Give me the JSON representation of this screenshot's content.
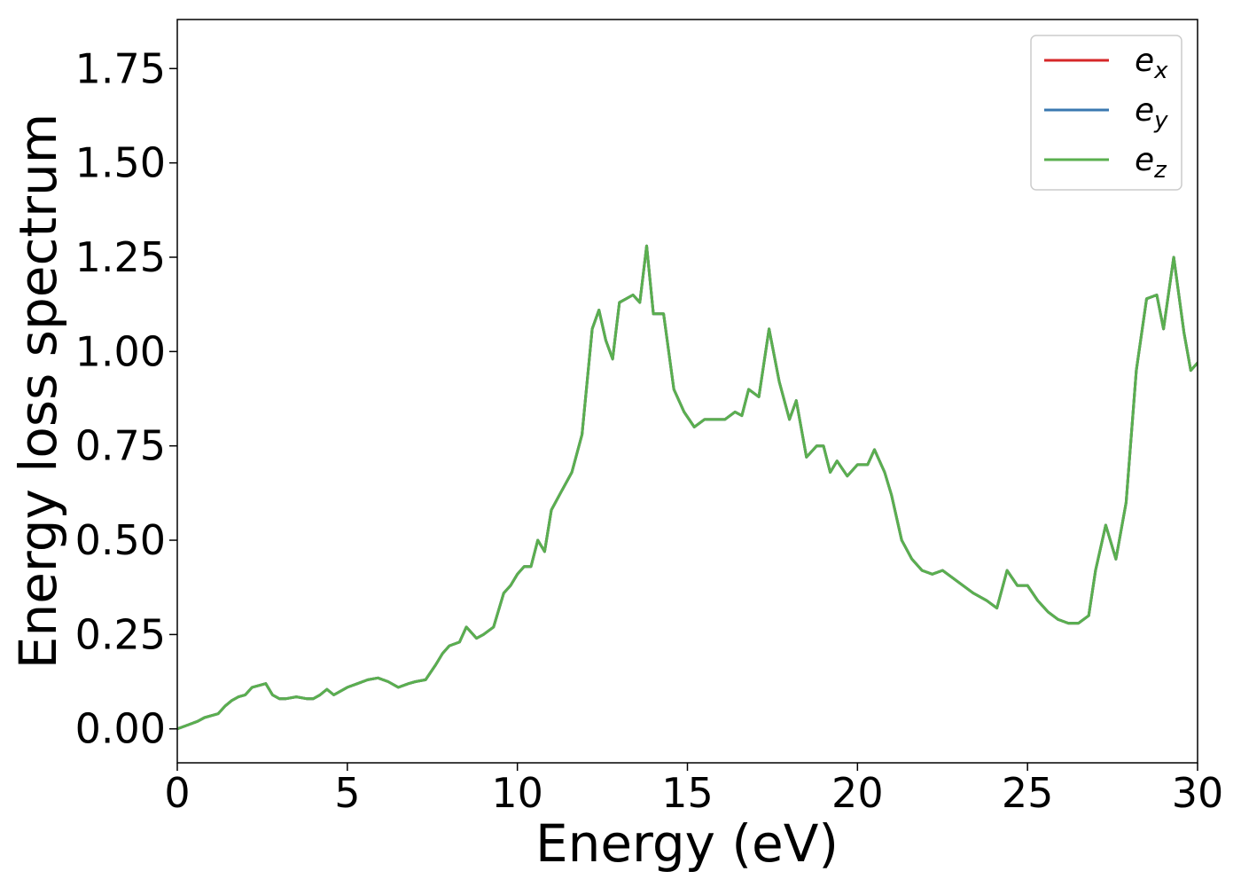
{
  "chart_data": {
    "type": "line",
    "xlabel": "Energy (eV)",
    "ylabel": "Energy loss spectrum",
    "xlim": [
      0,
      30
    ],
    "ylim": [
      -0.09,
      1.88
    ],
    "xticks": [
      0,
      5,
      10,
      15,
      20,
      25,
      30
    ],
    "xtick_labels": [
      "0",
      "5",
      "10",
      "15",
      "20",
      "25",
      "30"
    ],
    "yticks": [
      0,
      0.25,
      0.5,
      0.75,
      1.0,
      1.25,
      1.5,
      1.75
    ],
    "ytick_labels": [
      "0.00",
      "0.25",
      "0.50",
      "0.75",
      "1.00",
      "1.25",
      "1.50",
      "1.75"
    ],
    "grid": false,
    "legend_position": "top-right",
    "series": [
      {
        "name": "e",
        "subscript": "x",
        "color": "#d62728"
      },
      {
        "name": "e",
        "subscript": "y",
        "color": "#3a78b0"
      },
      {
        "name": "e",
        "subscript": "z",
        "color": "#5aaf4f"
      }
    ],
    "x": [
      0,
      0.3,
      0.6,
      0.8,
      1.0,
      1.2,
      1.4,
      1.6,
      1.8,
      2.0,
      2.2,
      2.4,
      2.6,
      2.8,
      3.0,
      3.2,
      3.5,
      3.8,
      4.0,
      4.2,
      4.4,
      4.6,
      4.8,
      5.0,
      5.3,
      5.6,
      5.9,
      6.2,
      6.5,
      6.8,
      7.0,
      7.3,
      7.6,
      7.8,
      8.0,
      8.3,
      8.5,
      8.8,
      9.0,
      9.3,
      9.6,
      9.8,
      10.0,
      10.2,
      10.4,
      10.6,
      10.8,
      11.0,
      11.3,
      11.6,
      11.9,
      12.2,
      12.4,
      12.6,
      12.8,
      13.0,
      13.2,
      13.4,
      13.6,
      13.8,
      14.0,
      14.3,
      14.6,
      14.9,
      15.2,
      15.5,
      15.8,
      16.1,
      16.4,
      16.6,
      16.8,
      17.1,
      17.4,
      17.7,
      18.0,
      18.2,
      18.5,
      18.8,
      19.0,
      19.2,
      19.4,
      19.7,
      20.0,
      20.3,
      20.5,
      20.8,
      21.0,
      21.3,
      21.6,
      21.9,
      22.2,
      22.5,
      22.8,
      23.1,
      23.4,
      23.8,
      24.1,
      24.4,
      24.7,
      25.0,
      25.3,
      25.6,
      25.9,
      26.2,
      26.5,
      26.8,
      27.0,
      27.3,
      27.6,
      27.9,
      28.2,
      28.5,
      28.8,
      29.0,
      29.3,
      29.6,
      29.8,
      30.0
    ],
    "values": [
      0.0,
      0.01,
      0.02,
      0.03,
      0.035,
      0.04,
      0.06,
      0.075,
      0.085,
      0.09,
      0.11,
      0.115,
      0.12,
      0.09,
      0.08,
      0.08,
      0.085,
      0.08,
      0.08,
      0.09,
      0.105,
      0.09,
      0.1,
      0.11,
      0.12,
      0.13,
      0.135,
      0.125,
      0.11,
      0.12,
      0.125,
      0.13,
      0.17,
      0.2,
      0.22,
      0.23,
      0.27,
      0.24,
      0.25,
      0.27,
      0.36,
      0.38,
      0.41,
      0.43,
      0.43,
      0.5,
      0.47,
      0.58,
      0.63,
      0.68,
      0.78,
      1.06,
      1.11,
      1.03,
      0.98,
      1.13,
      1.14,
      1.15,
      1.13,
      1.28,
      1.1,
      1.1,
      0.9,
      0.84,
      0.8,
      0.82,
      0.82,
      0.82,
      0.84,
      0.83,
      0.9,
      0.88,
      1.06,
      0.92,
      0.82,
      0.87,
      0.72,
      0.75,
      0.75,
      0.68,
      0.71,
      0.67,
      0.7,
      0.7,
      0.74,
      0.68,
      0.62,
      0.5,
      0.45,
      0.42,
      0.41,
      0.42,
      0.4,
      0.38,
      0.36,
      0.34,
      0.32,
      0.42,
      0.38,
      0.38,
      0.34,
      0.31,
      0.29,
      0.28,
      0.28,
      0.3,
      0.42,
      0.54,
      0.45,
      0.6,
      0.95,
      1.14,
      1.15,
      1.06,
      1.25,
      1.05,
      0.95,
      0.97
    ]
  }
}
